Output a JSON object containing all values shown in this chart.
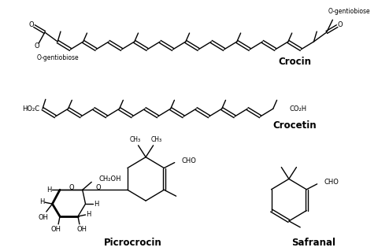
{
  "bg": "#ffffff",
  "lw": 1.0,
  "fs_mol": 6.0,
  "fs_label": 8.5,
  "crocin_label": "Crocin",
  "crocetin_label": "Crocetin",
  "picrocrocin_label": "Picrocrocin",
  "safranal_label": "Safranal"
}
